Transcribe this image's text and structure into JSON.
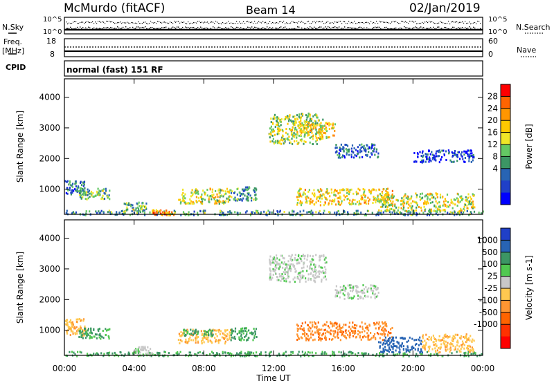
{
  "header": {
    "site": "McMurdo (fitACF)",
    "beam": "Beam 14",
    "date": "02/Jan/2019"
  },
  "noise_panel": {
    "left_label": "N.Sky",
    "right_label": "N.Search",
    "left_ticks": [
      "10^5",
      "10^0"
    ],
    "right_ticks": [
      "10^5",
      "10^0"
    ]
  },
  "freq_panel": {
    "left_label_line1": "Freq.",
    "left_label_line2": "[MHz]",
    "left_ticks": [
      "18",
      "8"
    ],
    "right_label": "Nave",
    "right_ticks": [
      "60",
      "0"
    ]
  },
  "cpid_panel": {
    "label": "CPID",
    "text": "normal (fast) 151 RF"
  },
  "chart_data": [
    {
      "type": "heatmap",
      "name": "power",
      "xlabel": "Time UT",
      "ylabel": "Slant Range [km]",
      "x_ticks": [
        "00:00",
        "04:00",
        "08:00",
        "12:00",
        "16:00",
        "20:00",
        "00:00"
      ],
      "x_range_hours": [
        0,
        24
      ],
      "y_ticks": [
        1000,
        2000,
        3000,
        4000
      ],
      "ylim": [
        180,
        4600
      ],
      "colorbar": {
        "label": "Power [dB]",
        "ticks": [
          "28",
          "24",
          "20",
          "16",
          "12",
          "8",
          "4"
        ],
        "colors": [
          "#ff0000",
          "#ff6400",
          "#ff9600",
          "#ffc800",
          "#f0e628",
          "#64c864",
          "#3c9664",
          "#2864b4",
          "#2040c8",
          "#0000ff"
        ]
      },
      "echo_regions": [
        {
          "t": [
            0.0,
            1.2
          ],
          "range_km": [
            850,
            1300
          ],
          "level_db": 10
        },
        {
          "t": [
            0.8,
            2.6
          ],
          "range_km": [
            700,
            1050
          ],
          "level_db": 14
        },
        {
          "t": [
            0.0,
            24.0
          ],
          "range_km": [
            180,
            330
          ],
          "level_db": 12
        },
        {
          "t": [
            3.4,
            4.8
          ],
          "range_km": [
            300,
            600
          ],
          "level_db": 14
        },
        {
          "t": [
            5.0,
            6.3
          ],
          "range_km": [
            180,
            350
          ],
          "level_db": 24
        },
        {
          "t": [
            6.5,
            9.5
          ],
          "range_km": [
            550,
            1050
          ],
          "level_db": 18
        },
        {
          "t": [
            9.5,
            11.0
          ],
          "range_km": [
            650,
            1100
          ],
          "level_db": 12
        },
        {
          "t": [
            11.7,
            14.8
          ],
          "range_km": [
            2500,
            3500
          ],
          "level_db": 16
        },
        {
          "t": [
            13.0,
            15.5
          ],
          "range_km": [
            2700,
            3200
          ],
          "level_db": 20
        },
        {
          "t": [
            13.3,
            18.8
          ],
          "range_km": [
            500,
            1050
          ],
          "level_db": 20
        },
        {
          "t": [
            15.5,
            18.0
          ],
          "range_km": [
            2050,
            2500
          ],
          "level_db": 8
        },
        {
          "t": [
            18.0,
            23.5
          ],
          "range_km": [
            300,
            900
          ],
          "level_db": 18
        },
        {
          "t": [
            20.0,
            23.5
          ],
          "range_km": [
            1900,
            2300
          ],
          "level_db": 6
        }
      ]
    },
    {
      "type": "heatmap",
      "name": "velocity",
      "xlabel": "Time UT",
      "ylabel": "Slant Range [km]",
      "x_ticks": [
        "00:00",
        "04:00",
        "08:00",
        "12:00",
        "16:00",
        "20:00",
        "00:00"
      ],
      "x_range_hours": [
        0,
        24
      ],
      "y_ticks": [
        1000,
        2000,
        3000,
        4000
      ],
      "ylim": [
        180,
        4600
      ],
      "colorbar": {
        "label": "Velocity [m s-1]",
        "ticks": [
          "1000",
          "500",
          "100",
          "25",
          "-25",
          "-100",
          "-500",
          "-1000"
        ],
        "colors": [
          "#2040c8",
          "#2864b4",
          "#3c9664",
          "#50c850",
          "#c8c8c8",
          "#ffc850",
          "#ff9632",
          "#ff6400",
          "#ff3200",
          "#ff0000"
        ]
      },
      "echo_regions": [
        {
          "t": [
            0.0,
            1.2
          ],
          "range_km": [
            850,
            1400
          ],
          "level_ms": -100
        },
        {
          "t": [
            0.8,
            2.6
          ],
          "range_km": [
            750,
            1100
          ],
          "level_ms": 100
        },
        {
          "t": [
            0.0,
            24.0
          ],
          "range_km": [
            180,
            330
          ],
          "level_ms": 100
        },
        {
          "t": [
            4.0,
            5.0
          ],
          "range_km": [
            200,
            500
          ],
          "level_ms": 0
        },
        {
          "t": [
            6.5,
            9.5
          ],
          "range_km": [
            600,
            1050
          ],
          "level_ms": -100
        },
        {
          "t": [
            6.8,
            8.5
          ],
          "range_km": [
            850,
            1050
          ],
          "level_ms": 100
        },
        {
          "t": [
            9.5,
            11.0
          ],
          "range_km": [
            700,
            1100
          ],
          "level_ms": 100
        },
        {
          "t": [
            11.7,
            15.0
          ],
          "range_km": [
            2600,
            3500
          ],
          "level_ms": 0
        },
        {
          "t": [
            13.3,
            18.8
          ],
          "range_km": [
            700,
            1300
          ],
          "level_ms": -500
        },
        {
          "t": [
            15.5,
            18.0
          ],
          "range_km": [
            2050,
            2500
          ],
          "level_ms": 0
        },
        {
          "t": [
            18.0,
            20.5
          ],
          "range_km": [
            300,
            800
          ],
          "level_ms": 500
        },
        {
          "t": [
            20.5,
            23.5
          ],
          "range_km": [
            300,
            900
          ],
          "level_ms": -100
        }
      ]
    }
  ]
}
